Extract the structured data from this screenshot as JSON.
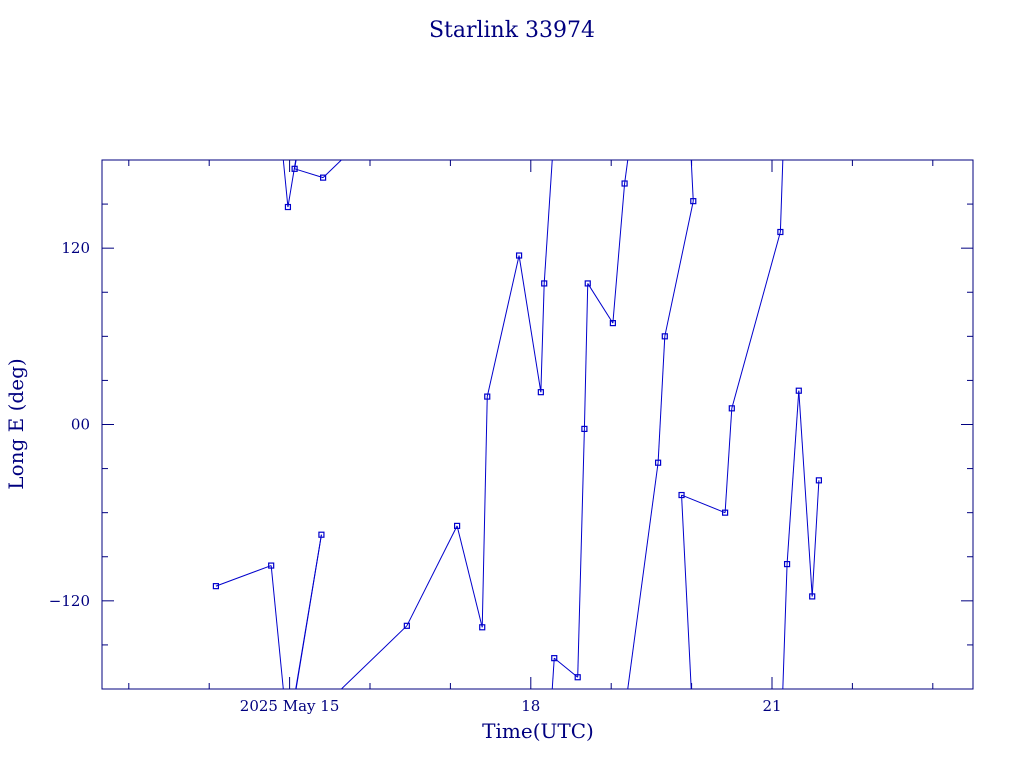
{
  "chart_data": {
    "type": "line",
    "title": "Starlink 33974",
    "xlabel": "Time(UTC)",
    "ylabel": "Long E (deg)",
    "color": "#0000cc",
    "axis_color": "#00007f",
    "xlim": [
      "2025-05-12T16:00",
      "2025-05-23T12:00"
    ],
    "ylim": [
      -180,
      180
    ],
    "x_tick_labels": [
      {
        "x": "2025-05-15T00:00",
        "label": "2025 May 15"
      },
      {
        "x": "2025-05-18T00:00",
        "label": "18"
      },
      {
        "x": "2025-05-21T00:00",
        "label": "21"
      }
    ],
    "y_tick_labels": [
      {
        "y": -120,
        "label": "−120"
      },
      {
        "y": 0,
        "label": "00"
      },
      {
        "y": 120,
        "label": "120"
      }
    ],
    "points": [
      {
        "x": "2025-05-14T02:00",
        "y": -110
      },
      {
        "x": "2025-05-14T18:30",
        "y": -96
      },
      {
        "x": "2025-05-14T23:30",
        "y": 148
      },
      {
        "x": "2025-05-15T09:30",
        "y": -75
      },
      {
        "x": "2025-05-15T01:30",
        "y": 174
      },
      {
        "x": "2025-05-15T10:00",
        "y": 168
      },
      {
        "x": "2025-05-16T11:00",
        "y": -137
      },
      {
        "x": "2025-05-17T02:00",
        "y": -69
      },
      {
        "x": "2025-05-17T09:30",
        "y": -138
      },
      {
        "x": "2025-05-17T11:00",
        "y": 19
      },
      {
        "x": "2025-05-17T20:30",
        "y": 115
      },
      {
        "x": "2025-05-18T03:00",
        "y": 22
      },
      {
        "x": "2025-05-18T04:00",
        "y": 96
      },
      {
        "x": "2025-05-18T07:00",
        "y": -159
      },
      {
        "x": "2025-05-18T14:00",
        "y": -172
      },
      {
        "x": "2025-05-18T16:00",
        "y": -3
      },
      {
        "x": "2025-05-18T17:00",
        "y": 96
      },
      {
        "x": "2025-05-19T00:30",
        "y": 69
      },
      {
        "x": "2025-05-19T04:00",
        "y": 164
      },
      {
        "x": "2025-05-19T14:00",
        "y": -26
      },
      {
        "x": "2025-05-19T16:00",
        "y": 60
      },
      {
        "x": "2025-05-20T00:30",
        "y": 152
      },
      {
        "x": "2025-05-19T21:00",
        "y": -48
      },
      {
        "x": "2025-05-20T10:00",
        "y": -60
      },
      {
        "x": "2025-05-20T12:00",
        "y": 11
      },
      {
        "x": "2025-05-21T02:30",
        "y": 131
      },
      {
        "x": "2025-05-21T04:30",
        "y": -95
      },
      {
        "x": "2025-05-21T08:00",
        "y": 23
      },
      {
        "x": "2025-05-21T12:00",
        "y": -117
      },
      {
        "x": "2025-05-21T14:00",
        "y": -38
      }
    ],
    "grid": false
  }
}
